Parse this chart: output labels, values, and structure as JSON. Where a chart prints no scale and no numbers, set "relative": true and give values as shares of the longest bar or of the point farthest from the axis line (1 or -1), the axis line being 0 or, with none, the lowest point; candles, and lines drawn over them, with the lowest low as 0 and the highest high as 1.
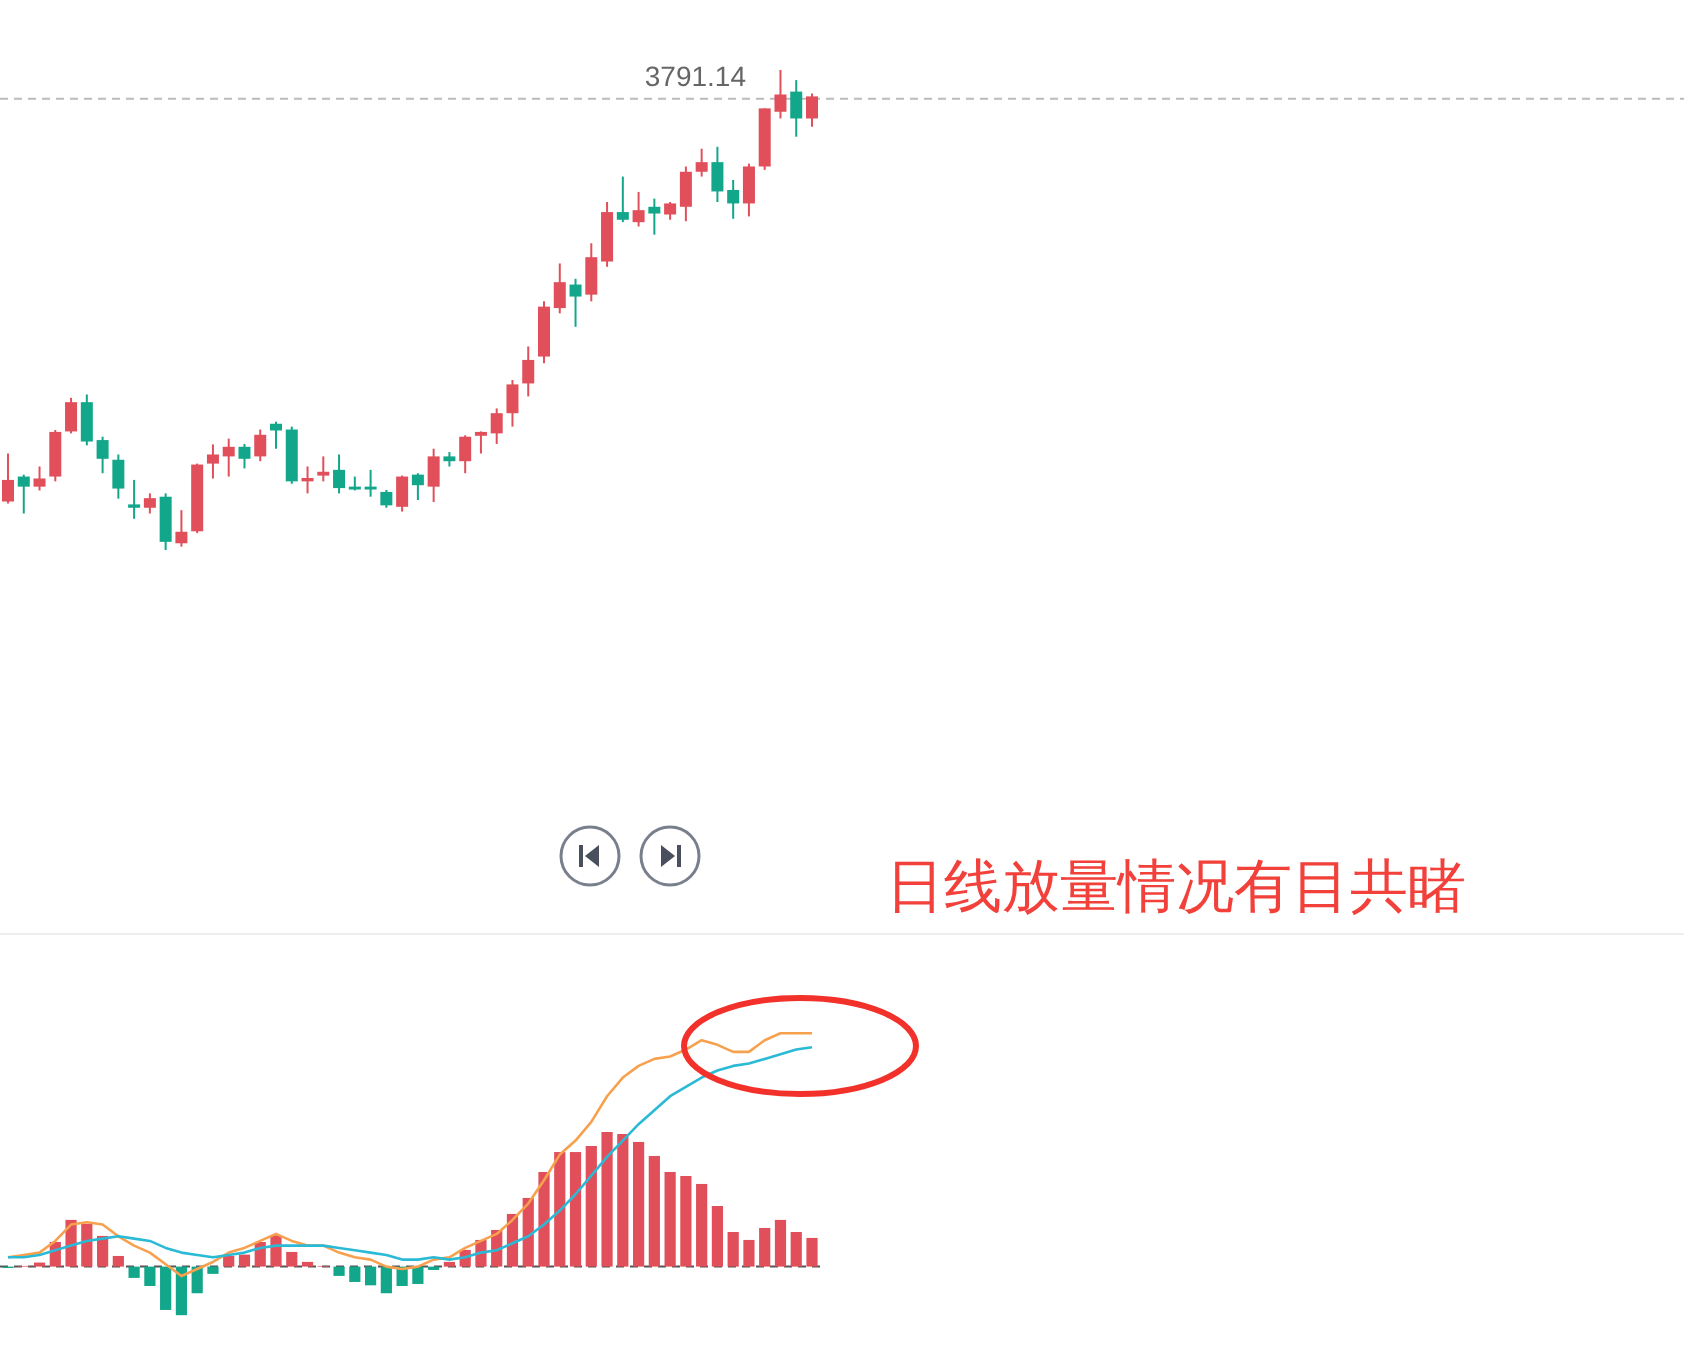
{
  "chart_data": [
    {
      "type": "candlestick",
      "relative": true,
      "categories": [
        null,
        null,
        null,
        null,
        null,
        null,
        null,
        null,
        null,
        null,
        null,
        null,
        null,
        null,
        null,
        null,
        null,
        null,
        null,
        null,
        null,
        null,
        null,
        null,
        null,
        null,
        null,
        null,
        null,
        null,
        null,
        null,
        null,
        null,
        null,
        null,
        null,
        null,
        null,
        null,
        null,
        null,
        null,
        null,
        null,
        null,
        null,
        null,
        null,
        null,
        null,
        null
      ],
      "ohlc": [
        [
          0.101,
          0.201,
          0.097,
          0.146
        ],
        [
          0.153,
          0.157,
          0.076,
          0.132
        ],
        [
          0.132,
          0.174,
          0.124,
          0.149
        ],
        [
          0.153,
          0.25,
          0.143,
          0.246
        ],
        [
          0.247,
          0.317,
          0.243,
          0.308
        ],
        [
          0.308,
          0.324,
          0.218,
          0.226
        ],
        [
          0.229,
          0.236,
          0.16,
          0.19
        ],
        [
          0.188,
          0.199,
          0.107,
          0.128
        ],
        [
          0.095,
          0.146,
          0.065,
          0.088
        ],
        [
          0.088,
          0.118,
          0.076,
          0.108
        ],
        [
          0.111,
          0.118,
          0,
          0.017
        ],
        [
          0.014,
          0.083,
          0.007,
          0.038
        ],
        [
          0.039,
          0.18,
          0.035,
          0.178
        ],
        [
          0.18,
          0.22,
          0.149,
          0.199
        ],
        [
          0.195,
          0.232,
          0.153,
          0.215
        ],
        [
          0.215,
          0.221,
          0.17,
          0.19
        ],
        [
          0.195,
          0.251,
          0.185,
          0.24
        ],
        [
          0.263,
          0.267,
          0.211,
          0.249
        ],
        [
          0.251,
          0.257,
          0.138,
          0.143
        ],
        [
          0.143,
          0.174,
          0.118,
          0.15
        ],
        [
          0.155,
          0.195,
          0.143,
          0.163
        ],
        [
          0.167,
          0.199,
          0.118,
          0.129
        ],
        [
          0.132,
          0.153,
          0.124,
          0.126
        ],
        [
          0.132,
          0.167,
          0.111,
          0.126
        ],
        [
          0.121,
          0.125,
          0.088,
          0.093
        ],
        [
          0.09,
          0.155,
          0.08,
          0.153
        ],
        [
          0.157,
          0.16,
          0.104,
          0.135
        ],
        [
          0.132,
          0.211,
          0.1,
          0.195
        ],
        [
          0.195,
          0.204,
          0.174,
          0.185
        ],
        [
          0.185,
          0.239,
          0.16,
          0.236
        ],
        [
          0.238,
          0.247,
          0.201,
          0.246
        ],
        [
          0.243,
          0.295,
          0.221,
          0.285
        ],
        [
          0.285,
          0.354,
          0.257,
          0.345
        ],
        [
          0.347,
          0.424,
          0.32,
          0.396
        ],
        [
          0.403,
          0.518,
          0.389,
          0.507
        ],
        [
          0.504,
          0.597,
          0.493,
          0.558
        ],
        [
          0.553,
          0.565,
          0.465,
          0.528
        ],
        [
          0.532,
          0.639,
          0.518,
          0.61
        ],
        [
          0.601,
          0.725,
          0.59,
          0.704
        ],
        [
          0.704,
          0.778,
          0.683,
          0.688
        ],
        [
          0.683,
          0.746,
          0.674,
          0.708
        ],
        [
          0.715,
          0.732,
          0.657,
          0.701
        ],
        [
          0.699,
          0.725,
          0.688,
          0.722
        ],
        [
          0.715,
          0.799,
          0.685,
          0.788
        ],
        [
          0.788,
          0.836,
          0.778,
          0.808
        ],
        [
          0.808,
          0.84,
          0.725,
          0.747
        ],
        [
          0.75,
          0.771,
          0.69,
          0.722
        ],
        [
          0.722,
          0.805,
          0.695,
          0.799
        ],
        [
          0.799,
          0.92,
          0.792,
          0.92
        ],
        [
          0.913,
          1,
          0.899,
          0.949
        ],
        [
          0.955,
          0.979,
          0.861,
          0.899
        ],
        [
          0.899,
          0.951,
          0.882,
          0.945
        ]
      ],
      "ref_lines": [
        {
          "axis": "y",
          "value": 0.94,
          "color": "#bbbbbb",
          "line_style": "dashed"
        }
      ],
      "annotations": [
        "3791.14"
      ]
    },
    {
      "type": "bar",
      "relative": true,
      "categories": [
        null,
        null,
        null,
        null,
        null,
        null,
        null,
        null,
        null,
        null,
        null,
        null,
        null,
        null,
        null,
        null,
        null,
        null,
        null,
        null,
        null,
        null,
        null,
        null,
        null,
        null,
        null,
        null,
        null,
        null,
        null,
        null,
        null,
        null,
        null,
        null,
        null,
        null,
        null,
        null,
        null,
        null,
        null,
        null,
        null,
        null,
        null,
        null,
        null,
        null,
        null,
        null
      ],
      "values": [
        -0.01,
        0.005,
        0.03,
        0.183,
        0.347,
        0.317,
        0.228,
        0.079,
        -0.084,
        -0.144,
        -0.322,
        -0.361,
        -0.198,
        -0.054,
        0.079,
        0.089,
        0.183,
        0.233,
        0.109,
        0.035,
        0.005,
        -0.069,
        -0.114,
        -0.139,
        -0.198,
        -0.144,
        -0.129,
        -0.025,
        0.035,
        0.124,
        0.198,
        0.272,
        0.391,
        0.51,
        0.703,
        0.851,
        0.851,
        0.896,
        1,
        0.985,
        0.926,
        0.822,
        0.703,
        0.673,
        0.614,
        0.45,
        0.257,
        0.198,
        0.287,
        0.347,
        0.257,
        0.213
      ],
      "annotations": [
        "日线放量情况有目共睹"
      ]
    },
    {
      "type": "line",
      "relative": true,
      "categories": [
        null,
        null,
        null,
        null,
        null,
        null,
        null,
        null,
        null,
        null,
        null,
        null,
        null,
        null,
        null,
        null,
        null,
        null,
        null,
        null,
        null,
        null,
        null,
        null,
        null,
        null,
        null,
        null,
        null,
        null,
        null,
        null,
        null,
        null,
        null,
        null,
        null,
        null,
        null,
        null,
        null,
        null,
        null,
        null,
        null,
        null,
        null,
        null,
        null,
        null,
        null,
        null
      ],
      "series": [
        {
          "color": "#f7a14e",
          "values": [
            0.04,
            0.05,
            0.06,
            0.11,
            0.18,
            0.19,
            0.18,
            0.13,
            0.09,
            0.06,
            0.01,
            -0.04,
            -0.01,
            0.02,
            0.06,
            0.08,
            0.11,
            0.14,
            0.11,
            0.09,
            0.09,
            0.06,
            0.04,
            0.03,
            0,
            -0.01,
            0,
            0.03,
            0.04,
            0.08,
            0.11,
            0.14,
            0.2,
            0.27,
            0.37,
            0.48,
            0.54,
            0.62,
            0.73,
            0.81,
            0.86,
            0.89,
            0.9,
            0.93,
            0.97,
            0.95,
            0.92,
            0.92,
            0.97,
            1,
            1,
            1
          ]
        },
        {
          "color": "#2bbad6",
          "values": [
            0.04,
            0.04,
            0.05,
            0.07,
            0.09,
            0.11,
            0.12,
            0.13,
            0.12,
            0.11,
            0.08,
            0.06,
            0.05,
            0.04,
            0.05,
            0.06,
            0.08,
            0.09,
            0.09,
            0.09,
            0.09,
            0.08,
            0.07,
            0.06,
            0.05,
            0.03,
            0.03,
            0.04,
            0.03,
            0.04,
            0.06,
            0.07,
            0.1,
            0.13,
            0.18,
            0.24,
            0.31,
            0.39,
            0.47,
            0.54,
            0.61,
            0.67,
            0.73,
            0.77,
            0.81,
            0.84,
            0.86,
            0.87,
            0.89,
            0.91,
            0.93,
            0.94
          ]
        }
      ],
      "ref_lines": [
        {
          "axis": "y",
          "value": 0,
          "color": "#555555",
          "line_style": "dashed"
        }
      ]
    }
  ]
}
